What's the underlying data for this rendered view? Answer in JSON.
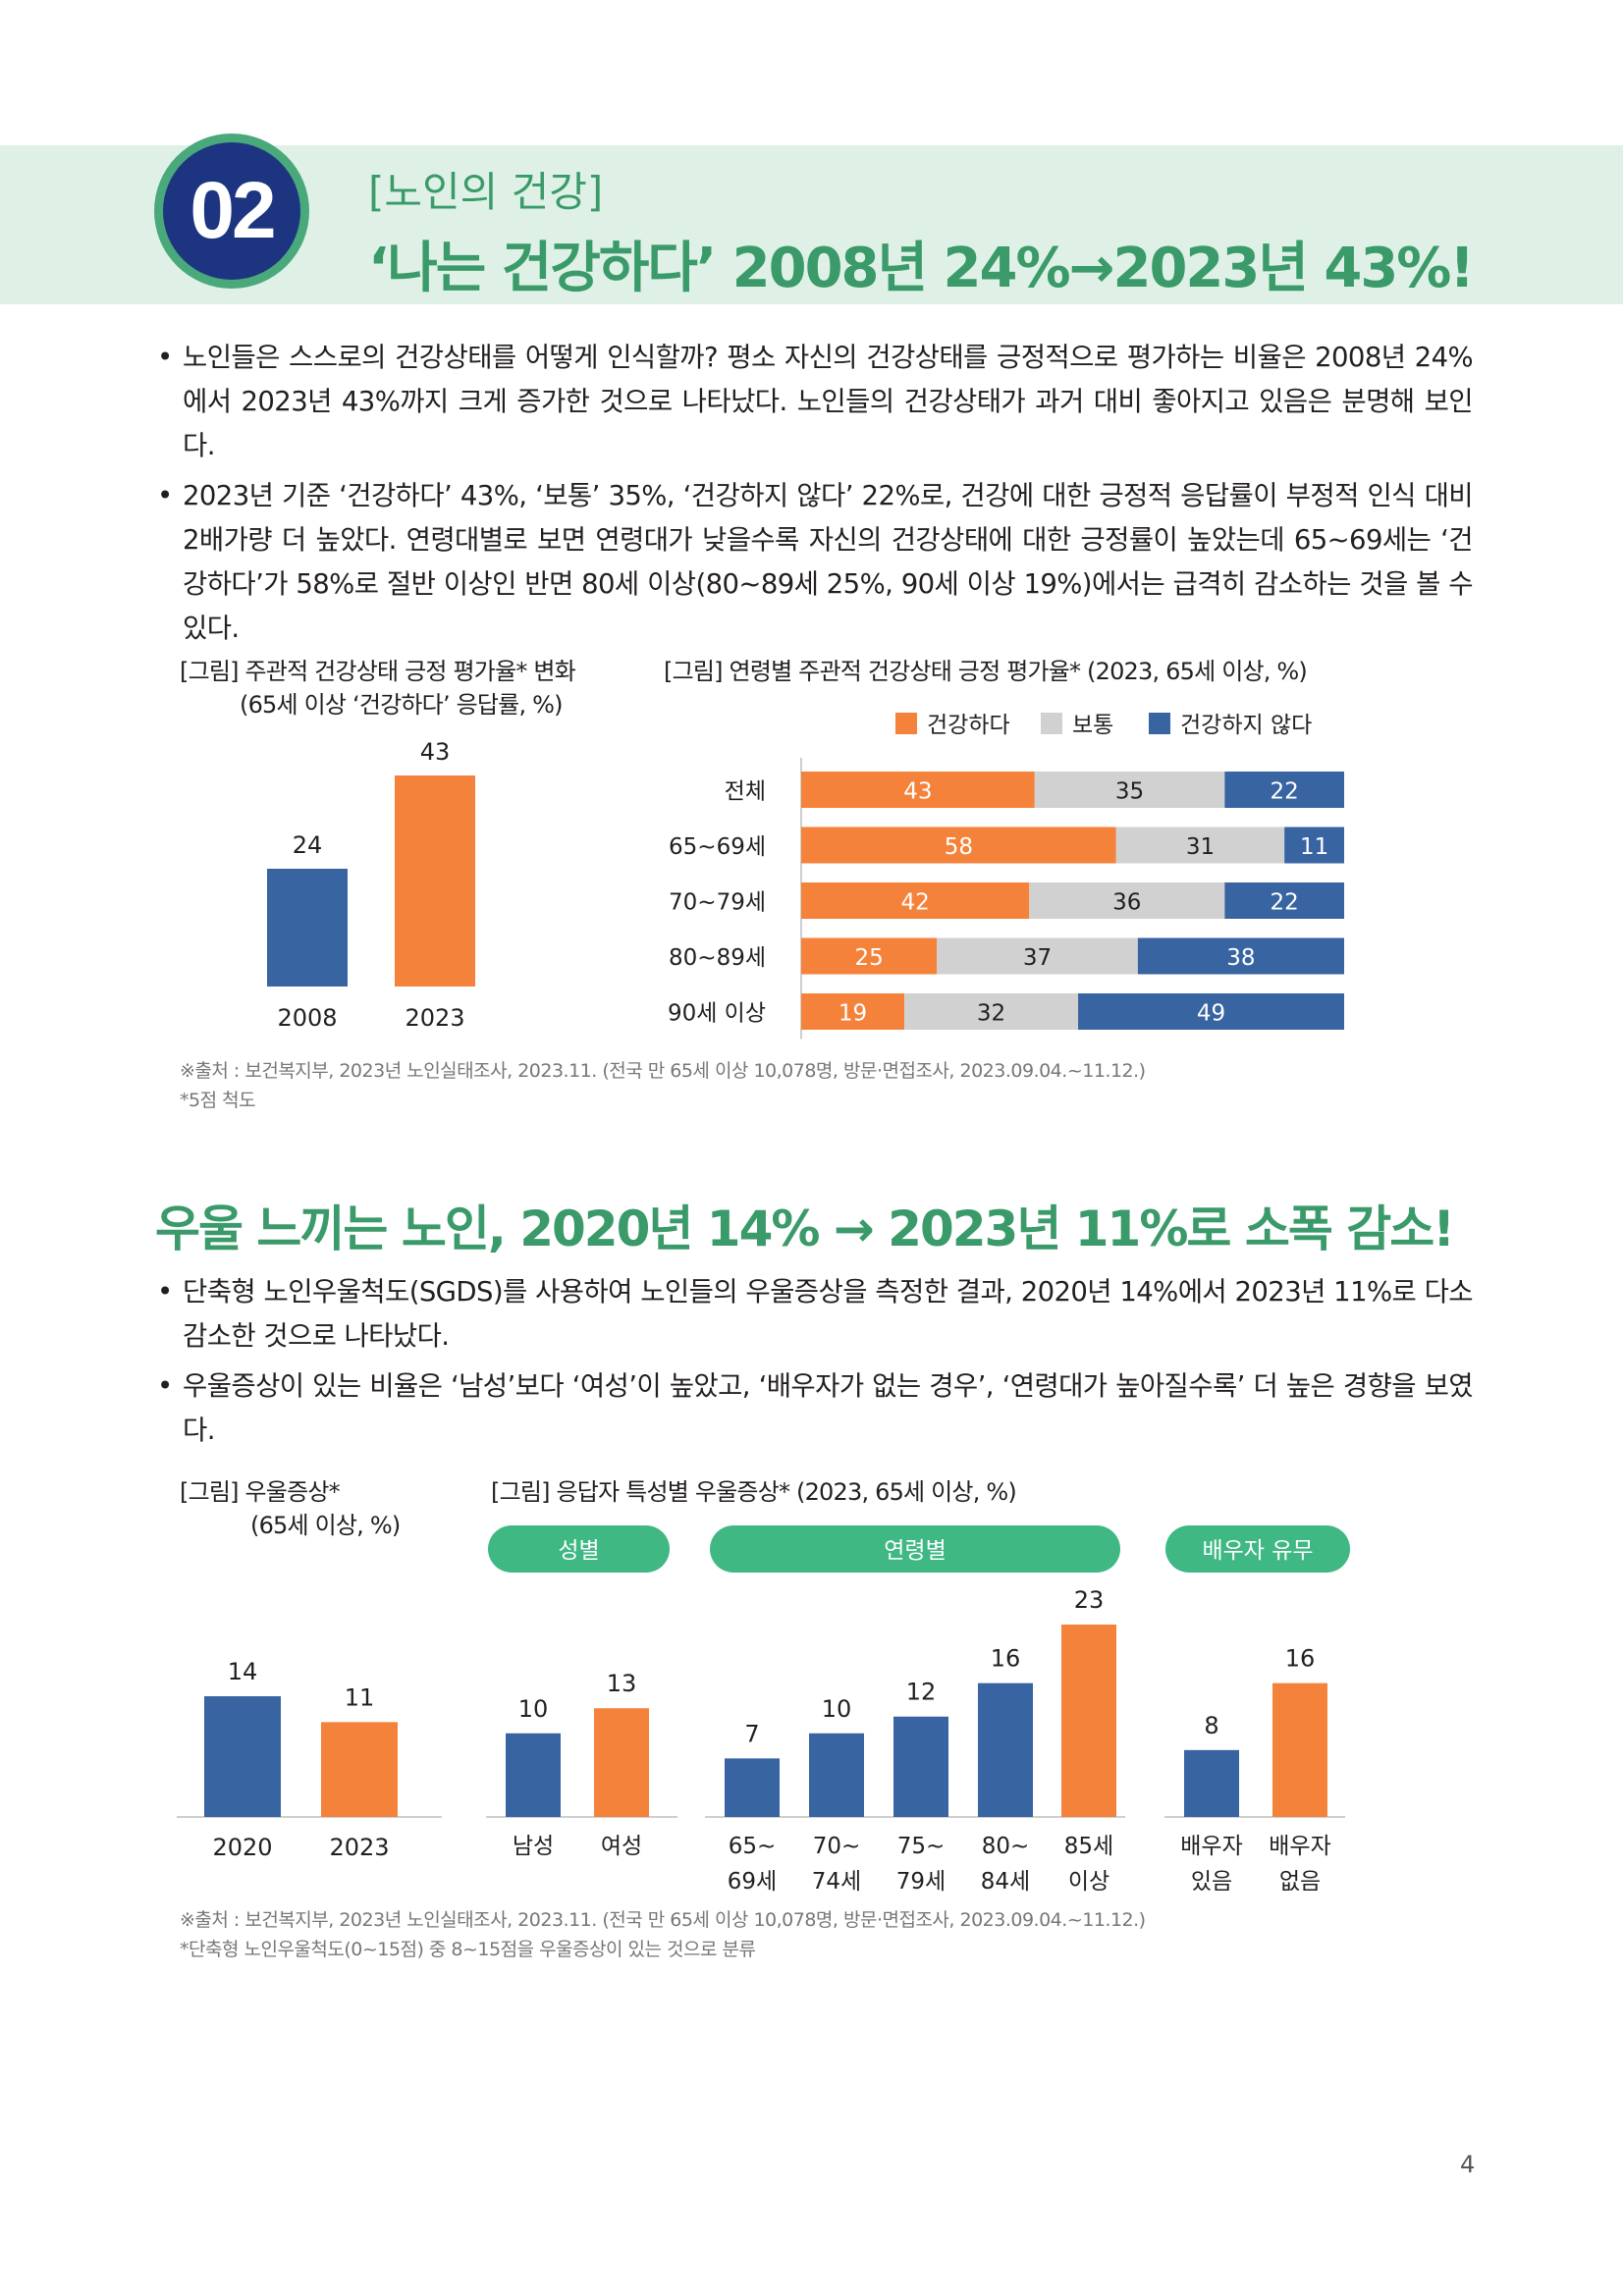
{
  "header": {
    "number": "02",
    "subtitle": "[노인의 건강]",
    "title": "‘나는 건강하다’ 2008년 24%→2023년 43%!"
  },
  "section1": {
    "bullets": [
      "노인들은 스스로의 건강상태를 어떻게 인식할까? 평소 자신의 건강상태를 긍정적으로 평가하는 비율은 2008년 24%에서 2023년 43%까지 크게 증가한 것으로 나타났다. 노인들의 건강상태가 과거 대비 좋아지고 있음은 분명해 보인다.",
      "2023년 기준 ‘건강하다’ 43%, ‘보통’ 35%, ‘건강하지 않다’ 22%로, 건강에 대한 긍정적 응답률이 부정적 인식 대비 2배가량 더 높았다. 연령대별로 보면 연령대가 낮을수록 자신의 건강상태에 대한 긍정률이 높았는데 65~69세는 ‘건강하다’가 58%로 절반 이상인 반면 80세 이상(80~89세 25%, 90세 이상 19%)에서는 급격히 감소하는 것을 볼 수 있다."
    ],
    "fig1_caption_line1": "[그림] 주관적 건강상태 긍정 평가율* 변화",
    "fig1_caption_line2": "(65세 이상 ‘건강하다’ 응답률, %)",
    "fig2_caption": "[그림] 연령별 주관적 건강상태 긍정 평가율* (2023, 65세 이상, %)",
    "source": "※출처 : 보건복지부, 2023년 노인실태조사, 2023.11. (전국 만 65세 이상 10,078명, 방문·면접조사, 2023.09.04.~11.12.)",
    "footnote": "*5점 척도"
  },
  "section2": {
    "title": "우울 느끼는 노인, 2020년 14% → 2023년 11%로 소폭 감소!",
    "bullets": [
      "단축형 노인우울척도(SGDS)를 사용하여 노인들의 우울증상을 측정한 결과, 2020년 14%에서 2023년 11%로 다소 감소한 것으로 나타났다.",
      "우울증상이 있는 비율은 ‘남성’보다 ‘여성’이 높았고, ‘배우자가 없는 경우’, ‘연령대가 높아질수록’ 더 높은 경향을 보였다."
    ],
    "fig3_caption_line1": "[그림] 우울증상*",
    "fig3_caption_line2": "(65세 이상, %)",
    "fig4_caption": "[그림] 응답자 특성별 우울증상* (2023, 65세 이상, %)",
    "group_labels": [
      "성별",
      "연령별",
      "배우자 유무"
    ],
    "source": "※출처 : 보건복지부, 2023년 노인실태조사, 2023.11. (전국 만 65세 이상 10,078명, 방문·면접조사, 2023.09.04.~11.12.)",
    "footnote": "*단축형 노인우울척도(0~15점) 중 8~15점을 우울증상이 있는 것으로 분류"
  },
  "page_number": "4",
  "colors": {
    "blue": "#3864a2",
    "orange": "#f5823a",
    "gray": "#d1d1d1",
    "green": "#3fb884",
    "title_green": "#3a9a6a",
    "navy": "#1d3580"
  },
  "chart_data": [
    {
      "type": "bar",
      "categories": [
        "2008",
        "2023"
      ],
      "values": [
        24,
        43
      ],
      "colors": [
        "#3864a2",
        "#f5823a"
      ]
    },
    {
      "type": "bar",
      "orientation": "horizontal-stacked",
      "categories": [
        "전체",
        "65~69세",
        "70~79세",
        "80~89세",
        "90세 이상"
      ],
      "series": [
        {
          "name": "건강하다",
          "values": [
            43,
            58,
            42,
            25,
            19
          ],
          "color": "#f5823a"
        },
        {
          "name": "보통",
          "values": [
            35,
            31,
            36,
            37,
            32
          ],
          "color": "#d1d1d1"
        },
        {
          "name": "건강하지 않다",
          "values": [
            22,
            11,
            22,
            38,
            49
          ],
          "color": "#3864a2"
        }
      ],
      "legend": "top-right"
    },
    {
      "type": "bar",
      "categories": [
        "2020",
        "2023"
      ],
      "values": [
        14,
        11
      ],
      "colors": [
        "#3864a2",
        "#f5823a"
      ]
    },
    {
      "type": "bar",
      "groups": [
        {
          "label": "성별",
          "categories": [
            [
              "남성"
            ],
            [
              "여성"
            ]
          ],
          "values": [
            10,
            13
          ]
        },
        {
          "label": "연령별",
          "categories": [
            [
              "65~",
              "69세"
            ],
            [
              "70~",
              "74세"
            ],
            [
              "75~",
              "79세"
            ],
            [
              "80~",
              "84세"
            ],
            [
              "85세",
              "이상"
            ]
          ],
          "values": [
            7,
            10,
            12,
            16,
            23
          ]
        },
        {
          "label": "배우자 유무",
          "categories": [
            [
              "배우자",
              "있음"
            ],
            [
              "배우자",
              "없음"
            ]
          ],
          "values": [
            8,
            16
          ]
        }
      ]
    }
  ]
}
